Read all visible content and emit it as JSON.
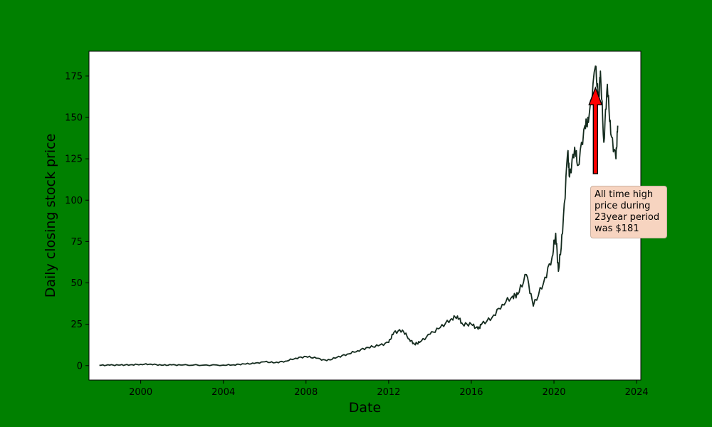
{
  "chart_data": {
    "type": "line",
    "title": "",
    "xlabel": "Date",
    "ylabel": "Daily closing stock price",
    "xlim": [
      "1997-07-01",
      "2024-03-15"
    ],
    "ylim": [
      -8.7,
      190
    ],
    "x_ticks": [
      "2000",
      "2004",
      "2008",
      "2012",
      "2016",
      "2020",
      "2024"
    ],
    "y_ticks": [
      0,
      25,
      50,
      75,
      100,
      125,
      150,
      175
    ],
    "grid": false,
    "line_color": "#142b1e",
    "series": [
      {
        "x": [
          "1998-01-01",
          "1998-07-01",
          "1999-01-01",
          "1999-07-01",
          "2000-01-01",
          "2000-07-01",
          "2001-01-01",
          "2001-07-01",
          "2002-01-01",
          "2003-01-01",
          "2004-01-01",
          "2004-07-01",
          "2005-01-01",
          "2005-07-01",
          "2006-01-01",
          "2006-07-01",
          "2007-01-01",
          "2007-07-01",
          "2008-01-01",
          "2008-07-01",
          "2009-01-01",
          "2009-07-01",
          "2010-01-01",
          "2010-07-01",
          "2011-01-01",
          "2011-07-01",
          "2012-01-01",
          "2012-04-01",
          "2012-09-01",
          "2013-01-01",
          "2013-04-01",
          "2013-07-01",
          "2014-01-01",
          "2014-07-01",
          "2015-01-01",
          "2015-05-01",
          "2015-08-01",
          "2016-01-01",
          "2016-05-01",
          "2016-07-01",
          "2017-01-01",
          "2017-07-01",
          "2018-01-01",
          "2018-04-01",
          "2018-09-01",
          "2019-01-01",
          "2019-07-01",
          "2019-12-01",
          "2020-02-01",
          "2020-03-20",
          "2020-06-01",
          "2020-08-31",
          "2020-10-01",
          "2021-01-01",
          "2021-03-01",
          "2021-07-01",
          "2021-09-01",
          "2022-01-03",
          "2022-03-01",
          "2022-04-01",
          "2022-06-01",
          "2022-08-01",
          "2022-10-01",
          "2023-01-01",
          "2023-02-01"
        ],
        "y": [
          0.2,
          0.3,
          0.35,
          0.5,
          0.8,
          0.9,
          0.3,
          0.4,
          0.35,
          0.3,
          0.35,
          0.5,
          1.0,
          1.3,
          2.3,
          1.8,
          2.7,
          4.5,
          5.5,
          4.5,
          3.0,
          5.0,
          7.0,
          9.0,
          11.0,
          12.0,
          14.0,
          20.0,
          21.5,
          16.0,
          13.0,
          14.0,
          19.0,
          23.0,
          28.0,
          30.0,
          25.0,
          25.0,
          22.0,
          25.0,
          29.0,
          37.0,
          42.0,
          43.0,
          55.0,
          36.0,
          50.0,
          66.0,
          80.0,
          57.0,
          80.0,
          129.0,
          114.0,
          132.0,
          121.0,
          145.0,
          147.0,
          181.0,
          160.0,
          178.0,
          135.0,
          170.0,
          140.0,
          125.0,
          145.0
        ]
      }
    ],
    "annotation": {
      "text": "All time high\nprice during\n23year period\nwas $181",
      "point": {
        "x": "2022-01-03",
        "y": 168
      },
      "text_at": {
        "x": "2022-01-03",
        "y": 116
      },
      "arrow_color": "#ff0000",
      "box_color": "#f7d4c0"
    }
  }
}
